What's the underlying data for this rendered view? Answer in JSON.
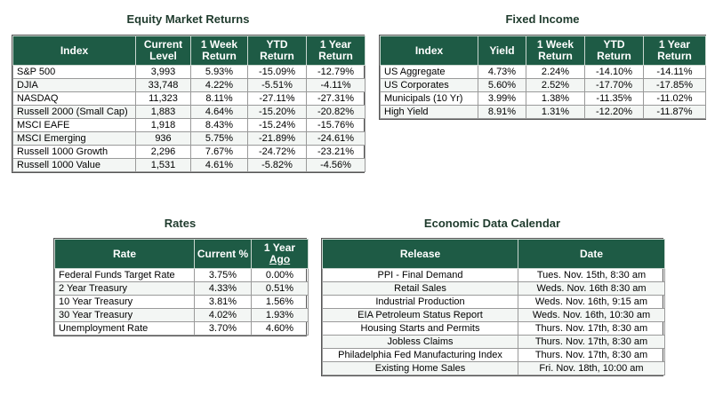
{
  "equity": {
    "title": "Equity Market Returns",
    "headers": [
      "Index",
      "Current Level",
      "1 Week Return",
      "YTD Return",
      "1 Year Return"
    ],
    "rows": [
      [
        "S&P 500",
        "3,993",
        "5.93%",
        "-15.09%",
        "-12.79%"
      ],
      [
        "DJIA",
        "33,748",
        "4.22%",
        "-5.51%",
        "-4.11%"
      ],
      [
        "NASDAQ",
        "11,323",
        "8.11%",
        "-27.11%",
        "-27.31%"
      ],
      [
        "Russell 2000 (Small Cap)",
        "1,883",
        "4.64%",
        "-15.20%",
        "-20.82%"
      ],
      [
        "MSCI EAFE",
        "1,918",
        "8.43%",
        "-15.24%",
        "-15.76%"
      ],
      [
        "MSCI Emerging",
        "936",
        "5.75%",
        "-21.89%",
        "-24.61%"
      ],
      [
        "Russell 1000 Growth",
        "2,296",
        "7.67%",
        "-24.72%",
        "-23.21%"
      ],
      [
        "Russell 1000 Value",
        "1,531",
        "4.61%",
        "-5.82%",
        "-4.56%"
      ]
    ]
  },
  "fixed": {
    "title": "Fixed Income",
    "headers": [
      "Index",
      "Yield",
      "1 Week Return",
      "YTD Return",
      "1 Year Return"
    ],
    "rows": [
      [
        "US Aggregate",
        "4.73%",
        "2.24%",
        "-14.10%",
        "-14.11%"
      ],
      [
        "US Corporates",
        "5.60%",
        "2.52%",
        "-17.70%",
        "-17.85%"
      ],
      [
        "Municipals (10 Yr)",
        "3.99%",
        "1.38%",
        "-11.35%",
        "-11.02%"
      ],
      [
        "High Yield",
        "8.91%",
        "1.31%",
        "-12.20%",
        "-11.87%"
      ]
    ]
  },
  "rates": {
    "title": "Rates",
    "headers": [
      "Rate",
      "Current %",
      "1 Year",
      "Ago"
    ],
    "rows": [
      [
        "Federal Funds Target Rate",
        "3.75%",
        "0.00%"
      ],
      [
        "2 Year Treasury",
        "4.33%",
        "0.51%"
      ],
      [
        "10 Year Treasury",
        "3.81%",
        "1.56%"
      ],
      [
        "30 Year Treasury",
        "4.02%",
        "1.93%"
      ],
      [
        "Unemployment Rate",
        "3.70%",
        "4.60%"
      ]
    ]
  },
  "calendar": {
    "title": "Economic Data Calendar",
    "headers": [
      "Release",
      "Date"
    ],
    "rows": [
      [
        "PPI - Final Demand",
        "Tues. Nov. 15th, 8:30 am"
      ],
      [
        "Retail Sales",
        "Weds. Nov. 16th 8:30 am"
      ],
      [
        "Industrial Production",
        "Weds. Nov. 16th, 9:15 am"
      ],
      [
        "EIA Petroleum Status Report",
        "Weds. Nov. 16th, 10:30 am"
      ],
      [
        "Housing Starts and Permits",
        "Thurs. Nov. 17th, 8:30 am"
      ],
      [
        "Jobless Claims",
        "Thurs. Nov. 17th, 8:30 am"
      ],
      [
        "Philadelphia Fed Manufacturing Index",
        "Thurs. Nov. 17th, 8:30 am"
      ],
      [
        "Existing Home Sales",
        "Fri. Nov. 18th, 10:00 am"
      ]
    ]
  }
}
